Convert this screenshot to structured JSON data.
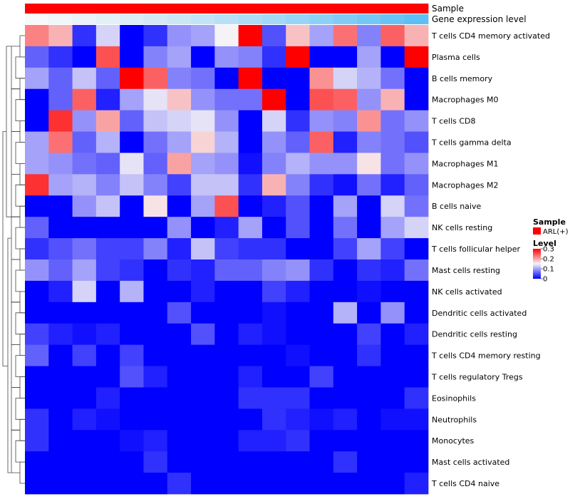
{
  "chart_data": {
    "type": "heatmap",
    "annotation_tracks": [
      {
        "name": "Sample",
        "colors": [
          "#ff0000",
          "#ff0000",
          "#ff0000",
          "#ff0000",
          "#ff0000",
          "#ff0000",
          "#ff0000",
          "#ff0000",
          "#ff0000",
          "#ff0000",
          "#ff0000",
          "#ff0000",
          "#ff0000",
          "#ff0000",
          "#ff0000",
          "#ff0000",
          "#ff0000"
        ]
      },
      {
        "name": "Gene expression level",
        "colors": [
          "#f7f9fb",
          "#f0f6fa",
          "#e9f3f9",
          "#e2f0f8",
          "#dbedf7",
          "#d3eaf6",
          "#cbe7f6",
          "#c2e4f6",
          "#b8e0f6",
          "#aedcf6",
          "#a3d8f6",
          "#98d4f6",
          "#8dd0f6",
          "#81ccf6",
          "#75c7f6",
          "#69c3f6",
          "#5dbff6"
        ]
      }
    ],
    "rows": [
      "T cells CD4 memory activated",
      "Plasma cells",
      "B cells memory",
      "Macrophages M0",
      "T cells CD8",
      "T cells gamma delta",
      "Macrophages M1",
      "Macrophages M2",
      "B cells naive",
      "NK cells resting",
      "T cells follicular helper",
      "Mast cells resting",
      "NK cells activated",
      "Dendritic cells activated",
      "Dendritic cells resting",
      "T cells CD4 memory resting",
      "T cells regulatory  Tregs",
      "Eosinophils",
      "Neutrophils",
      "Monocytes",
      "Mast cells activated",
      "T cells CD4 naive"
    ],
    "n_columns": 17,
    "values": [
      [
        0.22,
        0.19,
        0.03,
        0.13,
        0.0,
        0.03,
        0.09,
        0.1,
        0.15,
        0.3,
        0.05,
        0.18,
        0.1,
        0.23,
        0.08,
        0.24,
        0.19
      ],
      [
        0.06,
        0.03,
        0.0,
        0.25,
        0.0,
        0.08,
        0.1,
        0.0,
        0.09,
        0.08,
        0.03,
        0.3,
        0.0,
        0.0,
        0.1,
        0.0,
        0.3
      ],
      [
        0.1,
        0.06,
        0.12,
        0.06,
        0.3,
        0.24,
        0.08,
        0.07,
        0.0,
        0.3,
        0.0,
        0.0,
        0.21,
        0.13,
        0.11,
        0.07,
        0.0
      ],
      [
        0.0,
        0.06,
        0.24,
        0.02,
        0.1,
        0.14,
        0.18,
        0.09,
        0.07,
        0.07,
        0.3,
        0.0,
        0.25,
        0.24,
        0.09,
        0.19,
        0.0
      ],
      [
        0.0,
        0.27,
        0.09,
        0.2,
        0.06,
        0.12,
        0.13,
        0.14,
        0.09,
        0.0,
        0.13,
        0.03,
        0.09,
        0.08,
        0.21,
        0.07,
        0.09
      ],
      [
        0.1,
        0.23,
        0.06,
        0.11,
        0.0,
        0.07,
        0.1,
        0.17,
        0.11,
        0.0,
        0.09,
        0.06,
        0.24,
        0.02,
        0.08,
        0.07,
        0.05
      ],
      [
        0.1,
        0.09,
        0.07,
        0.06,
        0.14,
        0.06,
        0.2,
        0.1,
        0.09,
        0.01,
        0.08,
        0.11,
        0.09,
        0.09,
        0.16,
        0.07,
        0.09
      ],
      [
        0.27,
        0.1,
        0.11,
        0.08,
        0.12,
        0.08,
        0.04,
        0.12,
        0.12,
        0.03,
        0.19,
        0.08,
        0.03,
        0.01,
        0.07,
        0.02,
        0.06
      ],
      [
        0.0,
        0.0,
        0.09,
        0.12,
        0.0,
        0.16,
        0.0,
        0.1,
        0.25,
        0.0,
        0.02,
        0.05,
        0.0,
        0.1,
        0.0,
        0.13,
        0.07
      ],
      [
        0.06,
        0.0,
        0.0,
        0.0,
        0.0,
        0.0,
        0.09,
        0.0,
        0.02,
        0.1,
        0.0,
        0.05,
        0.0,
        0.07,
        0.0,
        0.1,
        0.13
      ],
      [
        0.03,
        0.05,
        0.07,
        0.04,
        0.04,
        0.08,
        0.02,
        0.12,
        0.04,
        0.03,
        0.03,
        0.0,
        0.0,
        0.04,
        0.1,
        0.04,
        0.0
      ],
      [
        0.09,
        0.06,
        0.1,
        0.04,
        0.03,
        0.0,
        0.03,
        0.02,
        0.06,
        0.06,
        0.08,
        0.09,
        0.03,
        0.0,
        0.03,
        0.02,
        0.07
      ],
      [
        0.0,
        0.02,
        0.13,
        0.0,
        0.11,
        0.0,
        0.0,
        0.02,
        0.0,
        0.0,
        0.04,
        0.02,
        0.0,
        0.0,
        0.01,
        0.0,
        0.0
      ],
      [
        0.0,
        0.0,
        0.0,
        0.0,
        0.0,
        0.0,
        0.05,
        0.0,
        0.0,
        0.0,
        0.01,
        0.0,
        0.0,
        0.11,
        0.0,
        0.09,
        0.0
      ],
      [
        0.04,
        0.02,
        0.01,
        0.02,
        0.0,
        0.0,
        0.0,
        0.05,
        0.0,
        0.02,
        0.01,
        0.0,
        0.0,
        0.0,
        0.04,
        0.0,
        0.02
      ],
      [
        0.06,
        0.0,
        0.04,
        0.0,
        0.04,
        0.0,
        0.0,
        0.0,
        0.0,
        0.0,
        0.0,
        0.01,
        0.0,
        0.0,
        0.03,
        0.0,
        0.0
      ],
      [
        0.0,
        0.0,
        0.0,
        0.0,
        0.05,
        0.02,
        0.0,
        0.0,
        0.0,
        0.02,
        0.0,
        0.0,
        0.04,
        0.0,
        0.0,
        0.0,
        0.0
      ],
      [
        0.0,
        0.0,
        0.0,
        0.02,
        0.0,
        0.0,
        0.0,
        0.0,
        0.0,
        0.03,
        0.03,
        0.03,
        0.0,
        0.0,
        0.0,
        0.0,
        0.03
      ],
      [
        0.03,
        0.0,
        0.02,
        0.01,
        0.0,
        0.0,
        0.0,
        0.0,
        0.0,
        0.0,
        0.03,
        0.02,
        0.01,
        0.02,
        0.0,
        0.01,
        0.01
      ],
      [
        0.03,
        0.0,
        0.0,
        0.0,
        0.01,
        0.02,
        0.0,
        0.0,
        0.0,
        0.02,
        0.02,
        0.03,
        0.0,
        0.0,
        0.0,
        0.0,
        0.0
      ],
      [
        0.0,
        0.0,
        0.0,
        0.0,
        0.0,
        0.03,
        0.0,
        0.0,
        0.0,
        0.0,
        0.0,
        0.0,
        0.0,
        0.03,
        0.0,
        0.0,
        0.0
      ],
      [
        0.0,
        0.0,
        0.0,
        0.0,
        0.0,
        0.0,
        0.03,
        0.0,
        0.0,
        0.0,
        0.0,
        0.0,
        0.0,
        0.0,
        0.0,
        0.0,
        0.02
      ]
    ],
    "color_scale": {
      "min": 0,
      "max": 0.3,
      "low": "#0000ff",
      "mid": "#f6f3f6",
      "high": "#ff0000",
      "mid_value": 0.15
    },
    "legend": {
      "sample_title": "Sample",
      "sample_entry": "ARL(+)",
      "sample_color": "#ff0000",
      "level_title": "Level",
      "level_ticks": [
        {
          "label": "0.3",
          "value": 0.3
        },
        {
          "label": "0.2",
          "value": 0.2
        },
        {
          "label": "0.1",
          "value": 0.1
        },
        {
          "label": "0",
          "value": 0.0
        }
      ],
      "placement": "right"
    },
    "dendrogram": "left",
    "grid": false
  }
}
